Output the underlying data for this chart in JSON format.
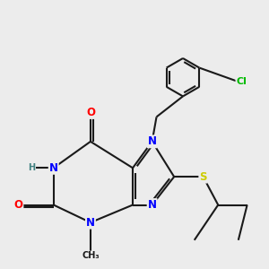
{
  "bg_color": "#ececec",
  "bond_color": "#1a1a1a",
  "bond_width": 1.5,
  "atom_colors": {
    "N": "#0000ff",
    "O": "#ff0000",
    "S": "#cccc00",
    "Cl": "#00bb00",
    "H": "#408080",
    "C": "#1a1a1a"
  },
  "font_size": 8.5,
  "small_font": 7.0
}
